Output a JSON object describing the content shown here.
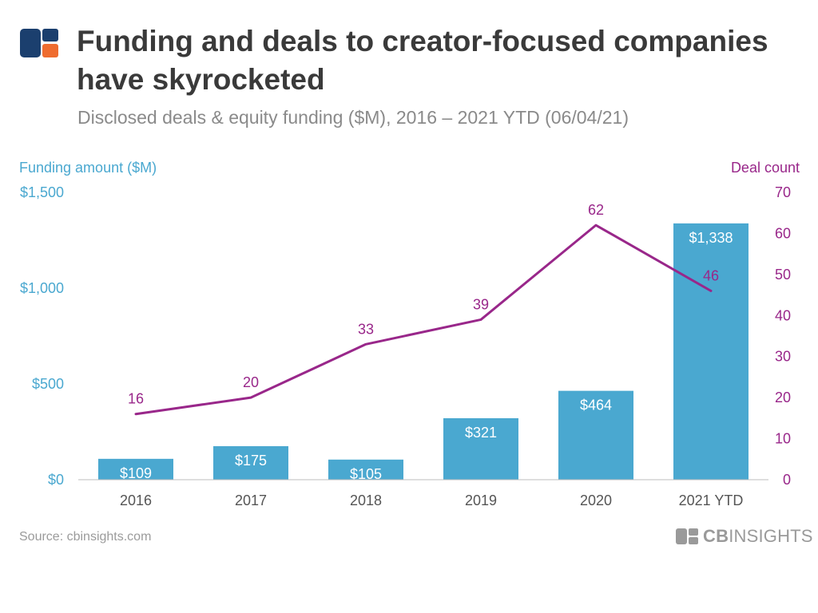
{
  "header": {
    "title": "Funding and deals to creator-focused companies have skyrocketed",
    "subtitle": "Disclosed deals & equity funding ($M), 2016 – 2021 YTD (06/04/21)"
  },
  "footer": {
    "source": "Source: cbinsights.com",
    "brand_bold": "CB",
    "brand_rest": "INSIGHTS"
  },
  "colors": {
    "bar": "#4aa8d0",
    "line": "#99278a",
    "left_axis": "#4aa8d0",
    "right_axis": "#99278a",
    "tick_text": "#555555",
    "logo_dark": "#1b3f6e",
    "logo_orange": "#ef6c2f"
  },
  "chart_data": {
    "type": "bar+line",
    "categories": [
      "2016",
      "2017",
      "2018",
      "2019",
      "2020",
      "2021 YTD"
    ],
    "series": [
      {
        "name": "Funding amount ($M)",
        "type": "bar",
        "axis": "left",
        "values": [
          109,
          175,
          105,
          321,
          464,
          1338
        ],
        "labels": [
          "$109",
          "$175",
          "$105",
          "$321",
          "$464",
          "$1,338"
        ]
      },
      {
        "name": "Deal count",
        "type": "line",
        "axis": "right",
        "values": [
          16,
          20,
          33,
          39,
          62,
          46
        ],
        "labels": [
          "16",
          "20",
          "33",
          "39",
          "62",
          "46"
        ]
      }
    ],
    "left_axis": {
      "label": "Funding amount ($M)",
      "range": [
        0,
        1500
      ],
      "ticks": [
        0,
        500,
        1000,
        1500
      ],
      "tick_labels": [
        "$0",
        "$500",
        "$1,000",
        "$1,500"
      ]
    },
    "right_axis": {
      "label": "Deal count",
      "range": [
        0,
        70
      ],
      "ticks": [
        0,
        10,
        20,
        30,
        40,
        50,
        60,
        70
      ],
      "tick_labels": [
        "0",
        "10",
        "20",
        "30",
        "40",
        "50",
        "60",
        "70"
      ]
    },
    "grid": false
  }
}
